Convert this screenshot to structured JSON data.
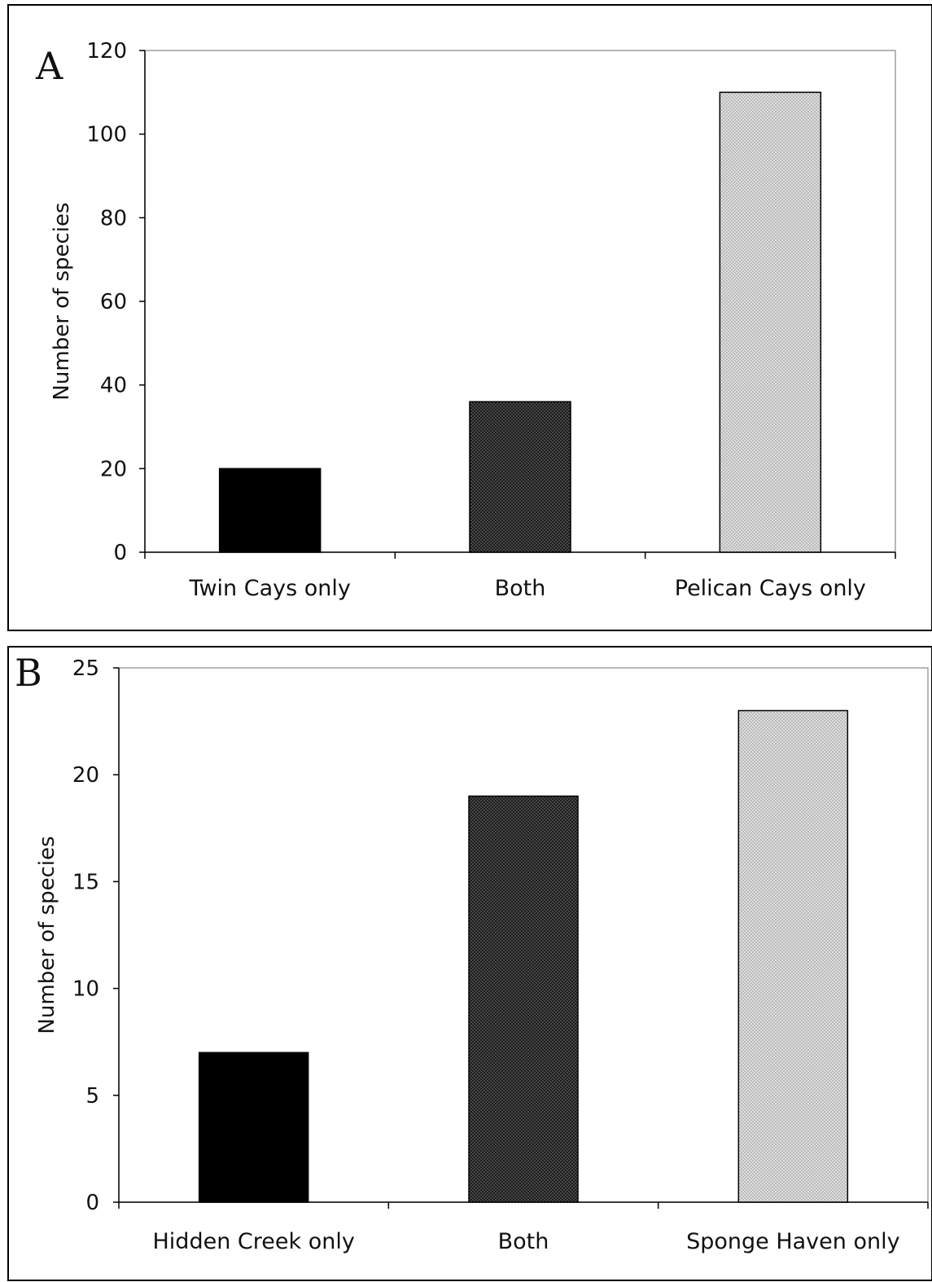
{
  "chart_data": [
    {
      "type": "bar",
      "panel_label": "A",
      "categories": [
        "Twin Cays only",
        "Both",
        "Pelican Cays only"
      ],
      "values": [
        20,
        36,
        110
      ],
      "ylabel": "Number of species",
      "xlabel": "",
      "ylim": [
        0,
        120
      ],
      "yticks": [
        0,
        20,
        40,
        60,
        80,
        100,
        120
      ],
      "grid": false,
      "bar_colors": [
        "#000000",
        "#222222",
        "#cfcfcf"
      ],
      "bar_patterns": [
        "solid",
        "dark-stipple",
        "light-stipple"
      ]
    },
    {
      "type": "bar",
      "panel_label": "B",
      "categories": [
        "Hidden Creek only",
        "Both",
        "Sponge Haven only"
      ],
      "values": [
        7,
        19,
        23
      ],
      "ylabel": "Number of species",
      "xlabel": "",
      "ylim": [
        0,
        25
      ],
      "yticks": [
        0,
        5,
        10,
        15,
        20,
        25
      ],
      "grid": false,
      "bar_colors": [
        "#000000",
        "#222222",
        "#cfcfcf"
      ],
      "bar_patterns": [
        "solid",
        "dark-stipple",
        "light-stipple"
      ]
    }
  ]
}
